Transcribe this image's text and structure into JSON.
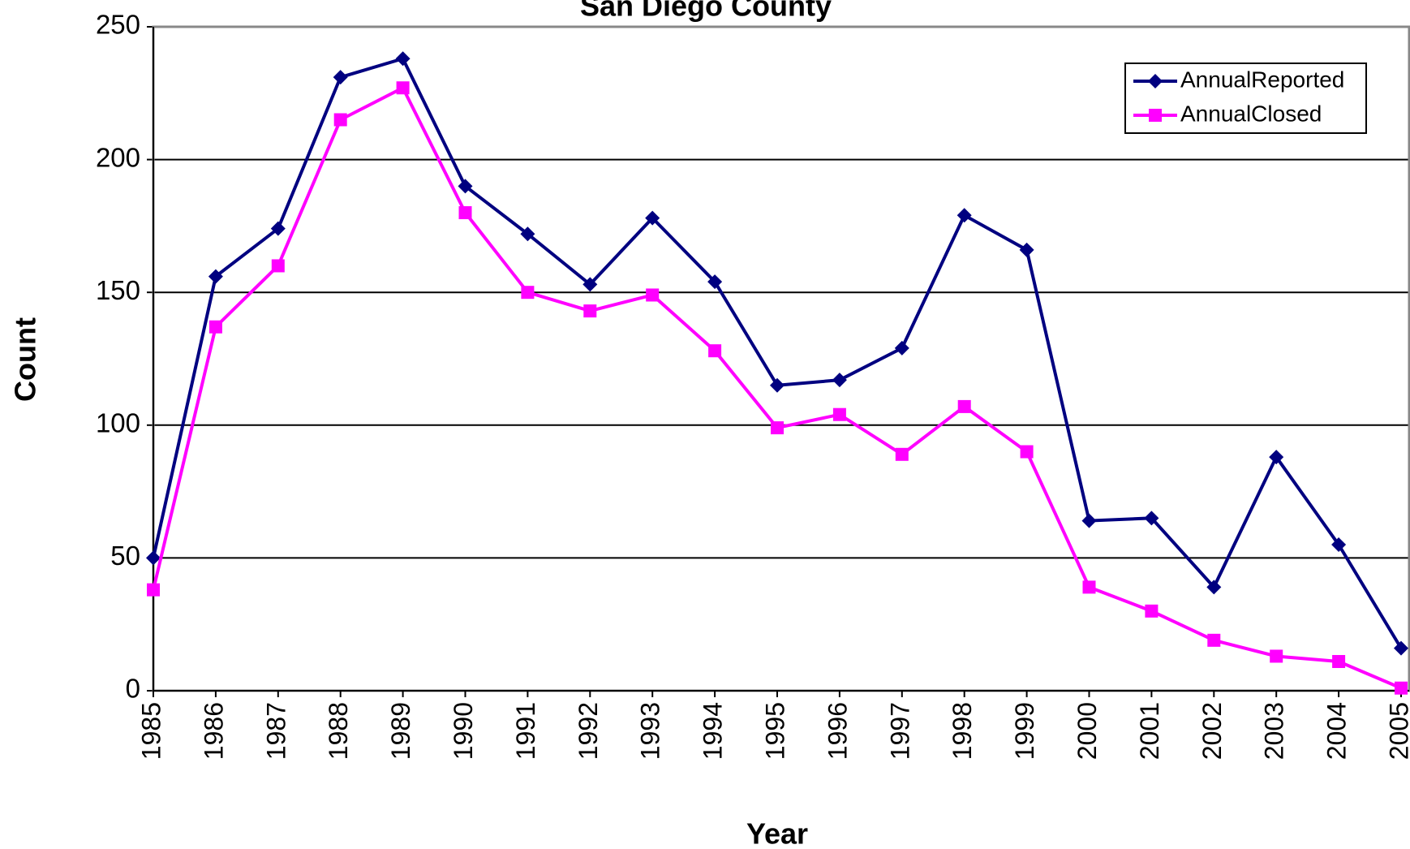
{
  "chart_data": {
    "type": "line",
    "title": "San Diego County",
    "x_label": "Year",
    "y_label": "Count",
    "categories": [
      "1985",
      "1986",
      "1987",
      "1988",
      "1989",
      "1990",
      "1991",
      "1992",
      "1993",
      "1994",
      "1995",
      "1996",
      "1997",
      "1998",
      "1999",
      "2000",
      "2001",
      "2002",
      "2003",
      "2004",
      "2005"
    ],
    "series": [
      {
        "name": "AnnualReported",
        "color": "#000080",
        "marker": "diamond",
        "values": [
          50,
          156,
          174,
          231,
          238,
          190,
          172,
          153,
          178,
          154,
          115,
          117,
          129,
          179,
          166,
          64,
          65,
          39,
          88,
          55,
          16
        ]
      },
      {
        "name": "AnnualClosed",
        "color": "#ff00ff",
        "marker": "square",
        "values": [
          38,
          137,
          160,
          215,
          227,
          180,
          150,
          143,
          149,
          128,
          99,
          104,
          89,
          107,
          90,
          39,
          30,
          19,
          13,
          11,
          1
        ]
      }
    ],
    "ylim": [
      0,
      250
    ],
    "yticks": [
      0,
      50,
      100,
      150,
      200,
      250
    ],
    "grid": true,
    "legend": "upper right"
  }
}
